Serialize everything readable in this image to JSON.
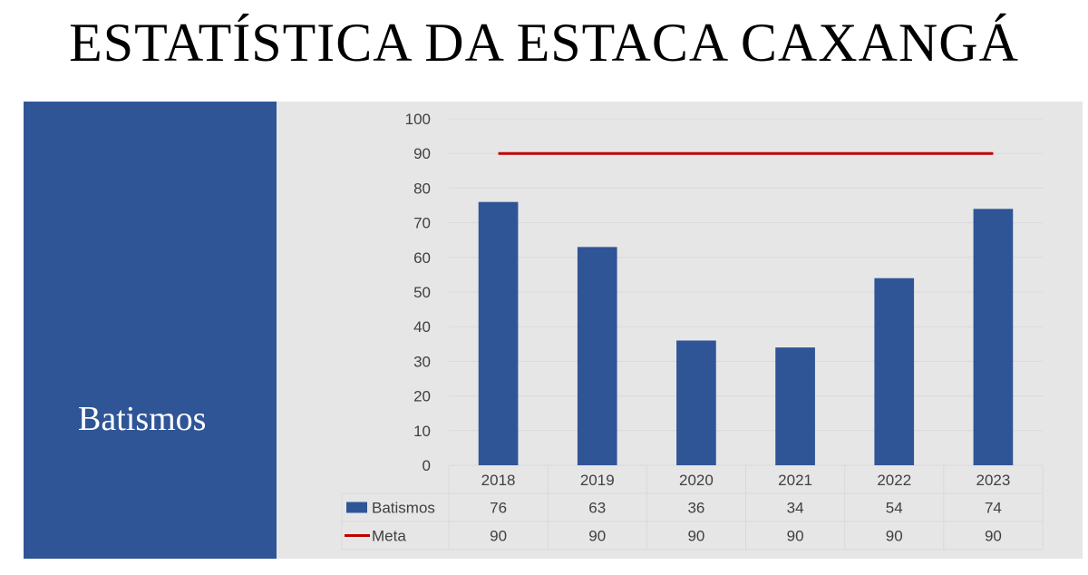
{
  "slide": {
    "title": "ESTATÍSTICA DA ESTACA CAXANGÁ",
    "side_label": "Batismos"
  },
  "colors": {
    "panel": "#2f5597",
    "bar": "#2f5597",
    "meta_line": "#c00000",
    "chart_background": "#e7e6e6",
    "grid": "#d9d9d9"
  },
  "chart_data": {
    "type": "bar",
    "categories": [
      "2018",
      "2019",
      "2020",
      "2021",
      "2022",
      "2023"
    ],
    "series": [
      {
        "name": "Batismos",
        "type": "bar",
        "values": [
          76,
          63,
          36,
          34,
          54,
          74
        ]
      },
      {
        "name": "Meta",
        "type": "line",
        "values": [
          90,
          90,
          90,
          90,
          90,
          90
        ]
      }
    ],
    "yticks": [
      "0",
      "10",
      "20",
      "30",
      "40",
      "50",
      "60",
      "70",
      "80",
      "90",
      "100"
    ],
    "ylim": [
      0,
      100
    ],
    "grid": true,
    "legend": "data-table"
  }
}
